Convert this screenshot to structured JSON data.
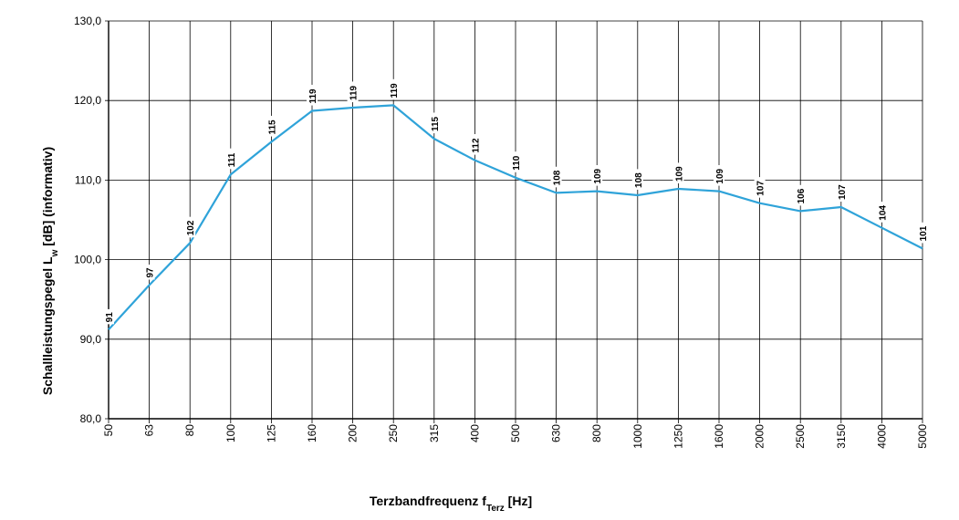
{
  "chart_data": {
    "type": "line",
    "xlabel": {
      "main": "Terzbandfrequenz  f",
      "sub": "Terz",
      "unit": " [Hz]"
    },
    "ylabel": {
      "main": "Schallleistungspegel L",
      "sub": "w",
      "rest": " [dB]  (informativ)"
    },
    "ylim": [
      80,
      130
    ],
    "yticks": [
      {
        "value": 80,
        "label": "80,0"
      },
      {
        "value": 90,
        "label": "90,0"
      },
      {
        "value": 100,
        "label": "100,0"
      },
      {
        "value": 110,
        "label": "110,0"
      },
      {
        "value": 120,
        "label": "120,0"
      },
      {
        "value": 130,
        "label": "130,0"
      }
    ],
    "categories": [
      "50",
      "63",
      "80",
      "100",
      "125",
      "160",
      "200",
      "250",
      "315",
      "400",
      "500",
      "630",
      "800",
      "1000",
      "1250",
      "1600",
      "2000",
      "2500",
      "3150",
      "4000",
      "5000"
    ],
    "series": [
      {
        "color": "#2fa3d9",
        "values": [
          91.2,
          96.8,
          102.1,
          110.7,
          114.8,
          118.7,
          119.1,
          119.4,
          115.2,
          112.5,
          110.3,
          108.4,
          108.6,
          108.1,
          108.9,
          108.6,
          107.1,
          106.1,
          106.6,
          104.0,
          101.4
        ],
        "labels": [
          "91",
          "97",
          "102",
          "111",
          "115",
          "119",
          "119",
          "119",
          "115",
          "112",
          "110",
          "108",
          "109",
          "108",
          "109",
          "109",
          "107",
          "106",
          "107",
          "104",
          "101"
        ]
      }
    ],
    "grid": true
  }
}
